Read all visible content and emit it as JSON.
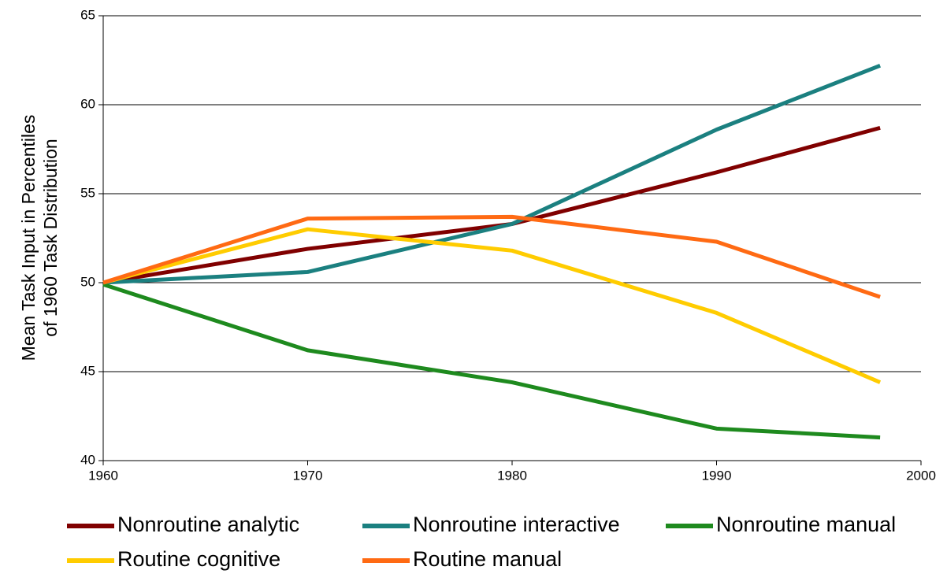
{
  "chart_data": {
    "type": "line",
    "y_label": [
      "Mean Task Input in Percentiles",
      "of 1960 Task Distribution"
    ],
    "x": [
      1960,
      1970,
      1980,
      1990,
      1998
    ],
    "series": [
      {
        "name": "Nonroutine analytic",
        "color": "#800000",
        "values": [
          50,
          51.9,
          53.3,
          56.2,
          58.7
        ]
      },
      {
        "name": "Nonroutine interactive",
        "color": "#1b8080",
        "values": [
          50,
          50.6,
          53.3,
          58.6,
          62.2
        ]
      },
      {
        "name": "Nonroutine manual",
        "color": "#1e8a1e",
        "values": [
          49.9,
          46.2,
          44.4,
          41.8,
          41.3
        ]
      },
      {
        "name": "Routine cognitive",
        "color": "#ffcc00",
        "values": [
          50,
          53.0,
          51.8,
          48.3,
          44.4
        ]
      },
      {
        "name": "Routine manual",
        "color": "#ff6a13",
        "values": [
          50,
          53.6,
          53.7,
          52.3,
          49.2
        ]
      }
    ],
    "xlim": [
      1960,
      2000
    ],
    "xticks": [
      1960,
      1970,
      1980,
      1990,
      2000
    ],
    "ylim": [
      40,
      65
    ],
    "yticks": [
      40,
      45,
      50,
      55,
      60,
      65
    ],
    "grid": true,
    "legend": "bottom"
  }
}
